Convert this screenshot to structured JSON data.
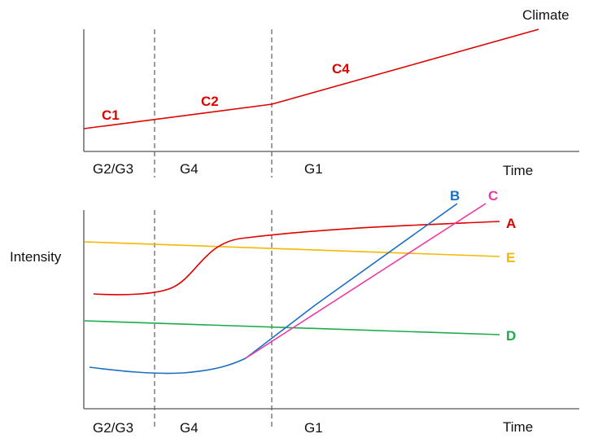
{
  "top_panel": {
    "title": "Climate",
    "x_label": "Time",
    "phases": [
      "G2/G3",
      "G4",
      "G1"
    ],
    "segments": [
      "C1",
      "C2",
      "C4"
    ]
  },
  "bottom_panel": {
    "y_label": "Intensity",
    "x_label": "Time",
    "phases": [
      "G2/G3",
      "G4",
      "G1"
    ],
    "curves": [
      {
        "id": "A",
        "label": "A",
        "color": "#e00000"
      },
      {
        "id": "B",
        "label": "B",
        "color": "#1a6fc4"
      },
      {
        "id": "C",
        "label": "C",
        "color": "#ee3aa0"
      },
      {
        "id": "D",
        "label": "D",
        "color": "#1aab4b"
      },
      {
        "id": "E",
        "label": "E",
        "color": "#f5b800"
      }
    ]
  },
  "colors": {
    "climate_line": "#e00000",
    "axis": "#555555",
    "divider": "#666666"
  }
}
